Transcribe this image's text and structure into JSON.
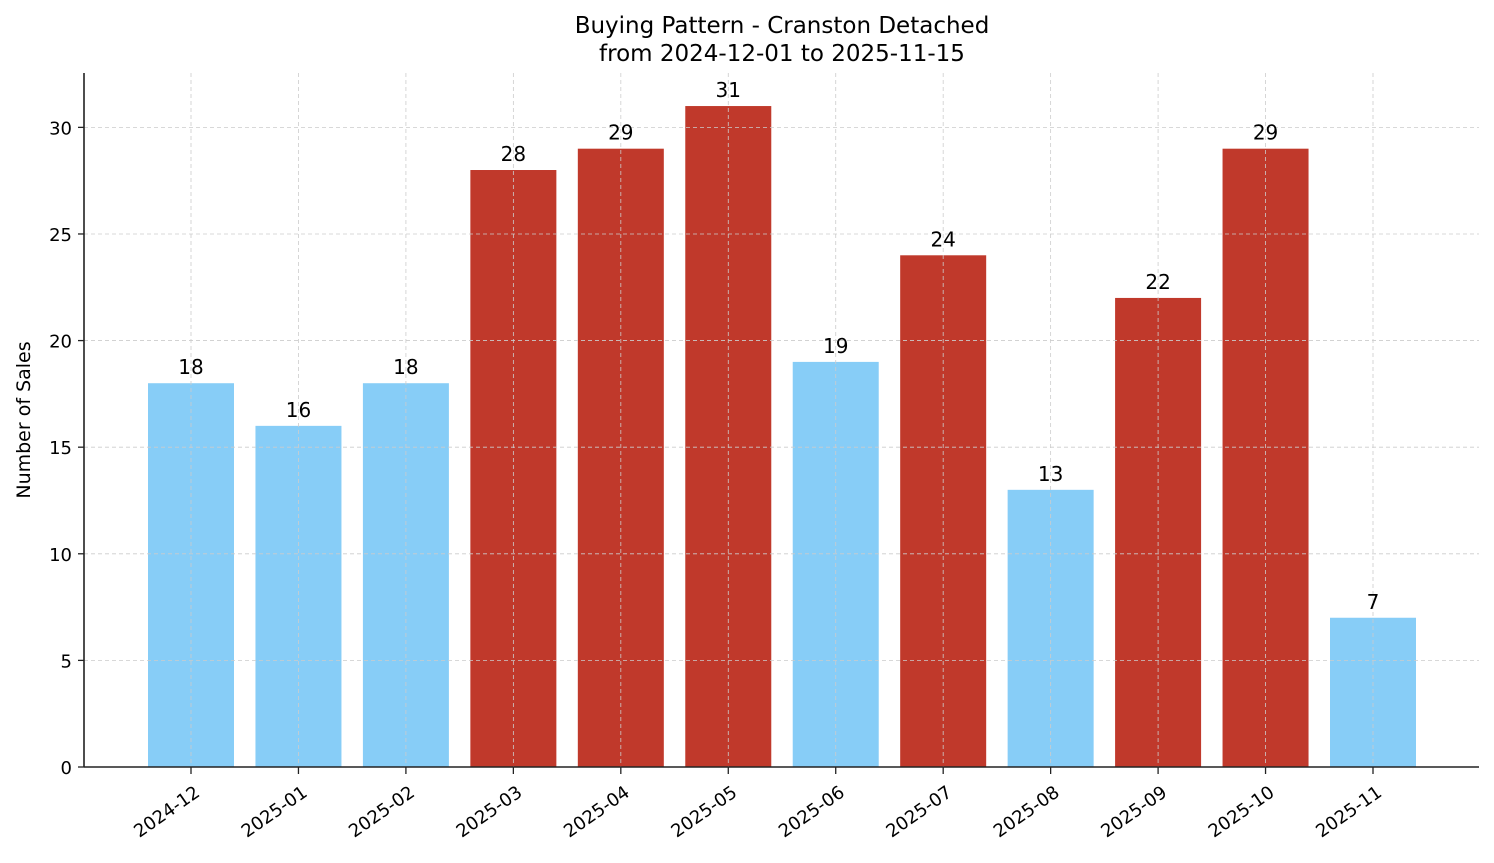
{
  "chart_data": {
    "type": "bar",
    "title": "Buying Pattern - Cranston Detached",
    "subtitle": "from 2024-12-01 to 2025-11-15",
    "xlabel": "",
    "ylabel": "Number of Sales",
    "categories": [
      "2024-12",
      "2025-01",
      "2025-02",
      "2025-03",
      "2025-04",
      "2025-05",
      "2025-06",
      "2025-07",
      "2025-08",
      "2025-09",
      "2025-10",
      "2025-11"
    ],
    "values": [
      18,
      16,
      18,
      28,
      29,
      31,
      19,
      24,
      13,
      22,
      29,
      7
    ],
    "bar_colors": [
      "#87cdf7",
      "#87cdf7",
      "#87cdf7",
      "#c0392b",
      "#c0392b",
      "#c0392b",
      "#87cdf7",
      "#c0392b",
      "#87cdf7",
      "#c0392b",
      "#c0392b",
      "#87cdf7"
    ],
    "highlight_color": "#c0392b",
    "base_color": "#87cdf7",
    "data_labels": true,
    "yticks": [
      0,
      5,
      10,
      15,
      20,
      25,
      30
    ],
    "ylim": [
      0,
      32.55
    ],
    "grid": true,
    "legend": null
  }
}
